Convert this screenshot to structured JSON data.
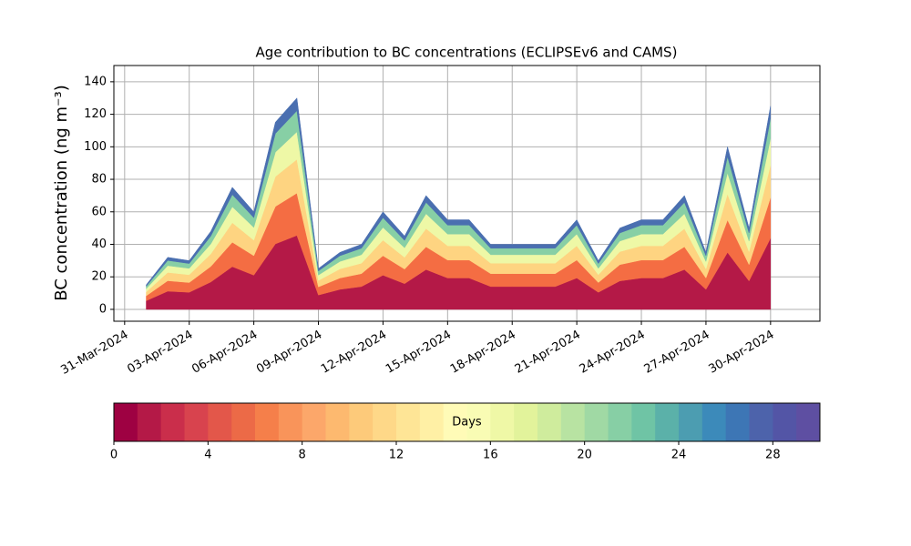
{
  "chart_data": {
    "type": "stacked_area",
    "title": "Age contribution to BC concentrations (ECLIPSEv6 and CAMS)",
    "y_label": "BC concentration (ng m⁻³)",
    "x": [
      "2024-04-01",
      "2024-04-02",
      "2024-04-03",
      "2024-04-04",
      "2024-04-05",
      "2024-04-06",
      "2024-04-07",
      "2024-04-08",
      "2024-04-09",
      "2024-04-10",
      "2024-04-11",
      "2024-04-12",
      "2024-04-13",
      "2024-04-14",
      "2024-04-15",
      "2024-04-16",
      "2024-04-17",
      "2024-04-18",
      "2024-04-19",
      "2024-04-20",
      "2024-04-21",
      "2024-04-22",
      "2024-04-23",
      "2024-04-24",
      "2024-04-25",
      "2024-04-26",
      "2024-04-27",
      "2024-04-28",
      "2024-04-29",
      "2024-04-30"
    ],
    "series": [
      {
        "color": "#b41947",
        "values": [
          5.3,
          11.2,
          10.5,
          16.8,
          26.3,
          21,
          40.3,
          45.5,
          8.8,
          12.3,
          14,
          21,
          15.8,
          24.5,
          19.3,
          19.3,
          14,
          14,
          14,
          14,
          19.3,
          10.5,
          17.5,
          19.3,
          19.3,
          24.5,
          12.3,
          35,
          17.5,
          43.8
        ]
      },
      {
        "color": "#f46d43",
        "values": [
          3,
          6.4,
          6,
          9.6,
          15,
          12,
          23,
          26,
          5,
          7,
          8,
          12,
          9,
          14,
          11,
          11,
          8,
          8,
          8,
          8,
          11,
          6,
          10,
          11,
          11,
          14,
          7,
          20,
          10,
          25
        ]
      },
      {
        "color": "#fed481",
        "values": [
          2.4,
          5.1,
          4.8,
          7.7,
          12,
          9.6,
          18.4,
          20.8,
          4,
          5.6,
          6.4,
          9.6,
          7.2,
          11.2,
          8.8,
          8.8,
          6.4,
          6.4,
          6.4,
          6.4,
          8.8,
          4.8,
          8,
          8.8,
          8.8,
          11.2,
          5.6,
          16,
          8,
          20
        ]
      },
      {
        "color": "#eef8a6",
        "values": [
          2,
          4.2,
          3.9,
          6.2,
          9.8,
          7.8,
          15,
          16.9,
          3.3,
          4.6,
          5.2,
          7.8,
          5.9,
          9.1,
          7.2,
          7.2,
          5.2,
          5.2,
          5.2,
          5.2,
          7.2,
          3.9,
          6.5,
          7.2,
          7.2,
          9.1,
          4.6,
          13,
          6.5,
          16.3
        ]
      },
      {
        "color": "#87cfa5",
        "values": [
          1.5,
          3.2,
          3,
          4.8,
          7.5,
          6,
          11.5,
          13,
          2.5,
          3.5,
          4,
          6,
          4.5,
          7,
          5.5,
          5.5,
          4,
          4,
          4,
          4,
          5.5,
          3,
          5,
          5.5,
          5.5,
          7,
          3.5,
          10,
          5,
          12.5
        ]
      },
      {
        "color": "#4a6fb0",
        "values": [
          0.9,
          1.9,
          1.8,
          2.9,
          4.5,
          3.6,
          6.9,
          7.8,
          1.5,
          2.1,
          2.4,
          3.6,
          2.7,
          4.2,
          3.3,
          3.3,
          2.4,
          2.4,
          2.4,
          2.4,
          3.3,
          1.8,
          3,
          3.3,
          3.3,
          4.2,
          2.1,
          6,
          3,
          7.5
        ]
      }
    ],
    "xlim": [
      "2024-03-30T12:00Z",
      "2024-05-02T07:00Z"
    ],
    "xticks": [
      {
        "value": "2024-03-31",
        "label": "31-Mar-2024"
      },
      {
        "value": "2024-04-03",
        "label": "03-Apr-2024"
      },
      {
        "value": "2024-04-06",
        "label": "06-Apr-2024"
      },
      {
        "value": "2024-04-09",
        "label": "09-Apr-2024"
      },
      {
        "value": "2024-04-12",
        "label": "12-Apr-2024"
      },
      {
        "value": "2024-04-15",
        "label": "15-Apr-2024"
      },
      {
        "value": "2024-04-18",
        "label": "18-Apr-2024"
      },
      {
        "value": "2024-04-21",
        "label": "21-Apr-2024"
      },
      {
        "value": "2024-04-24",
        "label": "24-Apr-2024"
      },
      {
        "value": "2024-04-27",
        "label": "27-Apr-2024"
      },
      {
        "value": "2024-04-30",
        "label": "30-Apr-2024"
      }
    ],
    "ylim": [
      -7.3,
      150
    ],
    "yticks": [
      0,
      20,
      40,
      60,
      80,
      100,
      120,
      140
    ],
    "grid": true,
    "colorbar": {
      "label": "Days",
      "lim": [
        0,
        30
      ],
      "ticks": [
        0,
        4,
        8,
        12,
        16,
        20,
        24,
        28
      ],
      "colors": [
        "#9e0142",
        "#b41947",
        "#ca2e4b",
        "#d8434e",
        "#e3574a",
        "#ec6a47",
        "#f57f4a",
        "#f9945a",
        "#fca76a",
        "#fdb96f",
        "#fdca7a",
        "#fed888",
        "#fee596",
        "#fff0a5",
        "#fffbb7",
        "#f9fcb4",
        "#eff8a6",
        "#e2f39b",
        "#cfec9d",
        "#b8e3a2",
        "#a0d9a4",
        "#87cfa5",
        "#6fc4a5",
        "#5bb1a9",
        "#4c9db1",
        "#3c8aba",
        "#3d76b5",
        "#4d63ab",
        "#5355a6",
        "#5e4fa2"
      ]
    }
  }
}
